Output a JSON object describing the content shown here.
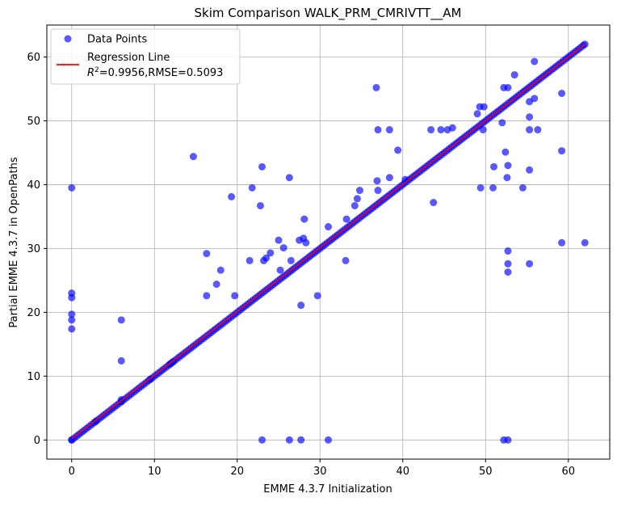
{
  "chart_data": {
    "type": "scatter",
    "title": "Skim Comparison WALK_PRM_CMRIVTT__AM",
    "xlabel": "EMME 4.3.7 Initialization",
    "ylabel": "Partial EMME 4.3.7 in OpenPaths",
    "xlim": [
      -3,
      65
    ],
    "ylim": [
      -3,
      65
    ],
    "xticks": [
      0,
      10,
      20,
      30,
      40,
      50,
      60
    ],
    "yticks": [
      0,
      10,
      20,
      30,
      40,
      50,
      60
    ],
    "grid": true,
    "legend_position": "top-left",
    "legend": {
      "points_label": "Data Points",
      "line_label": "Regression Line",
      "line_stats": "=0.9956,RMSE=0.5093",
      "r2_label": "R",
      "r2_exp": "2"
    },
    "colors": {
      "points": "#0000ff",
      "line": "#ff0000",
      "grid": "#b0b0b0"
    },
    "regression": {
      "x": [
        0,
        62
      ],
      "y": [
        0.2,
        62
      ]
    },
    "diagonal_range": [
      0,
      62
    ],
    "points": [
      [
        0,
        0
      ],
      [
        0,
        17.4
      ],
      [
        0,
        18.8
      ],
      [
        0,
        19.7
      ],
      [
        0,
        22.3
      ],
      [
        0,
        23
      ],
      [
        0,
        39.5
      ],
      [
        2.9,
        2.9
      ],
      [
        6,
        6
      ],
      [
        6,
        6.3
      ],
      [
        6,
        12.4
      ],
      [
        6,
        18.8
      ],
      [
        9.5,
        9.5
      ],
      [
        11.9,
        11.9
      ],
      [
        12.2,
        12.2
      ],
      [
        14.7,
        44.4
      ],
      [
        16.3,
        22.6
      ],
      [
        16.3,
        29.2
      ],
      [
        17.5,
        24.4
      ],
      [
        18,
        26.6
      ],
      [
        19.3,
        38.1
      ],
      [
        19.7,
        22.6
      ],
      [
        21.5,
        28.1
      ],
      [
        21.8,
        39.5
      ],
      [
        22.8,
        36.7
      ],
      [
        23,
        42.8
      ],
      [
        23,
        0
      ],
      [
        23.2,
        28.1
      ],
      [
        23.5,
        28.5
      ],
      [
        24,
        29.3
      ],
      [
        25,
        31.3
      ],
      [
        25.2,
        26.6
      ],
      [
        25.6,
        30.1
      ],
      [
        26.3,
        41.1
      ],
      [
        26.3,
        0
      ],
      [
        26.5,
        28.1
      ],
      [
        27.5,
        31.3
      ],
      [
        27.7,
        21.1
      ],
      [
        27.7,
        0
      ],
      [
        28,
        31.6
      ],
      [
        28.1,
        34.6
      ],
      [
        28.3,
        30.9
      ],
      [
        29.7,
        22.6
      ],
      [
        31,
        33.4
      ],
      [
        31,
        0
      ],
      [
        33.1,
        28.1
      ],
      [
        33.2,
        34.6
      ],
      [
        34.2,
        36.7
      ],
      [
        34.5,
        37.8
      ],
      [
        34.8,
        39.1
      ],
      [
        36.8,
        55.2
      ],
      [
        36.9,
        40.6
      ],
      [
        37,
        48.6
      ],
      [
        37,
        39.1
      ],
      [
        38.4,
        41.1
      ],
      [
        38.4,
        48.6
      ],
      [
        39.4,
        45.4
      ],
      [
        40.3,
        40.8
      ],
      [
        43.4,
        48.6
      ],
      [
        43.7,
        37.2
      ],
      [
        44.6,
        48.6
      ],
      [
        45.4,
        48.6
      ],
      [
        46,
        48.9
      ],
      [
        49,
        51.1
      ],
      [
        49.3,
        52.2
      ],
      [
        49.4,
        39.5
      ],
      [
        49.7,
        48.6
      ],
      [
        49.8,
        52.2
      ],
      [
        50.9,
        39.5
      ],
      [
        51,
        42.8
      ],
      [
        52,
        49.7
      ],
      [
        52.2,
        55.2
      ],
      [
        52.2,
        0
      ],
      [
        52.4,
        45.1
      ],
      [
        52.6,
        41.1
      ],
      [
        52.7,
        55.2
      ],
      [
        52.7,
        43
      ],
      [
        52.7,
        27.6
      ],
      [
        52.7,
        26.3
      ],
      [
        52.7,
        0
      ],
      [
        52.7,
        29.6
      ],
      [
        53.5,
        57.2
      ],
      [
        54.5,
        39.5
      ],
      [
        55.3,
        53
      ],
      [
        55.3,
        50.6
      ],
      [
        55.3,
        48.6
      ],
      [
        55.3,
        42.3
      ],
      [
        55.3,
        27.6
      ],
      [
        55.9,
        59.3
      ],
      [
        55.9,
        53.5
      ],
      [
        56.3,
        48.6
      ],
      [
        59.2,
        54.3
      ],
      [
        59.2,
        45.3
      ],
      [
        59.2,
        30.9
      ],
      [
        62,
        30.9
      ],
      [
        62,
        62
      ]
    ]
  }
}
